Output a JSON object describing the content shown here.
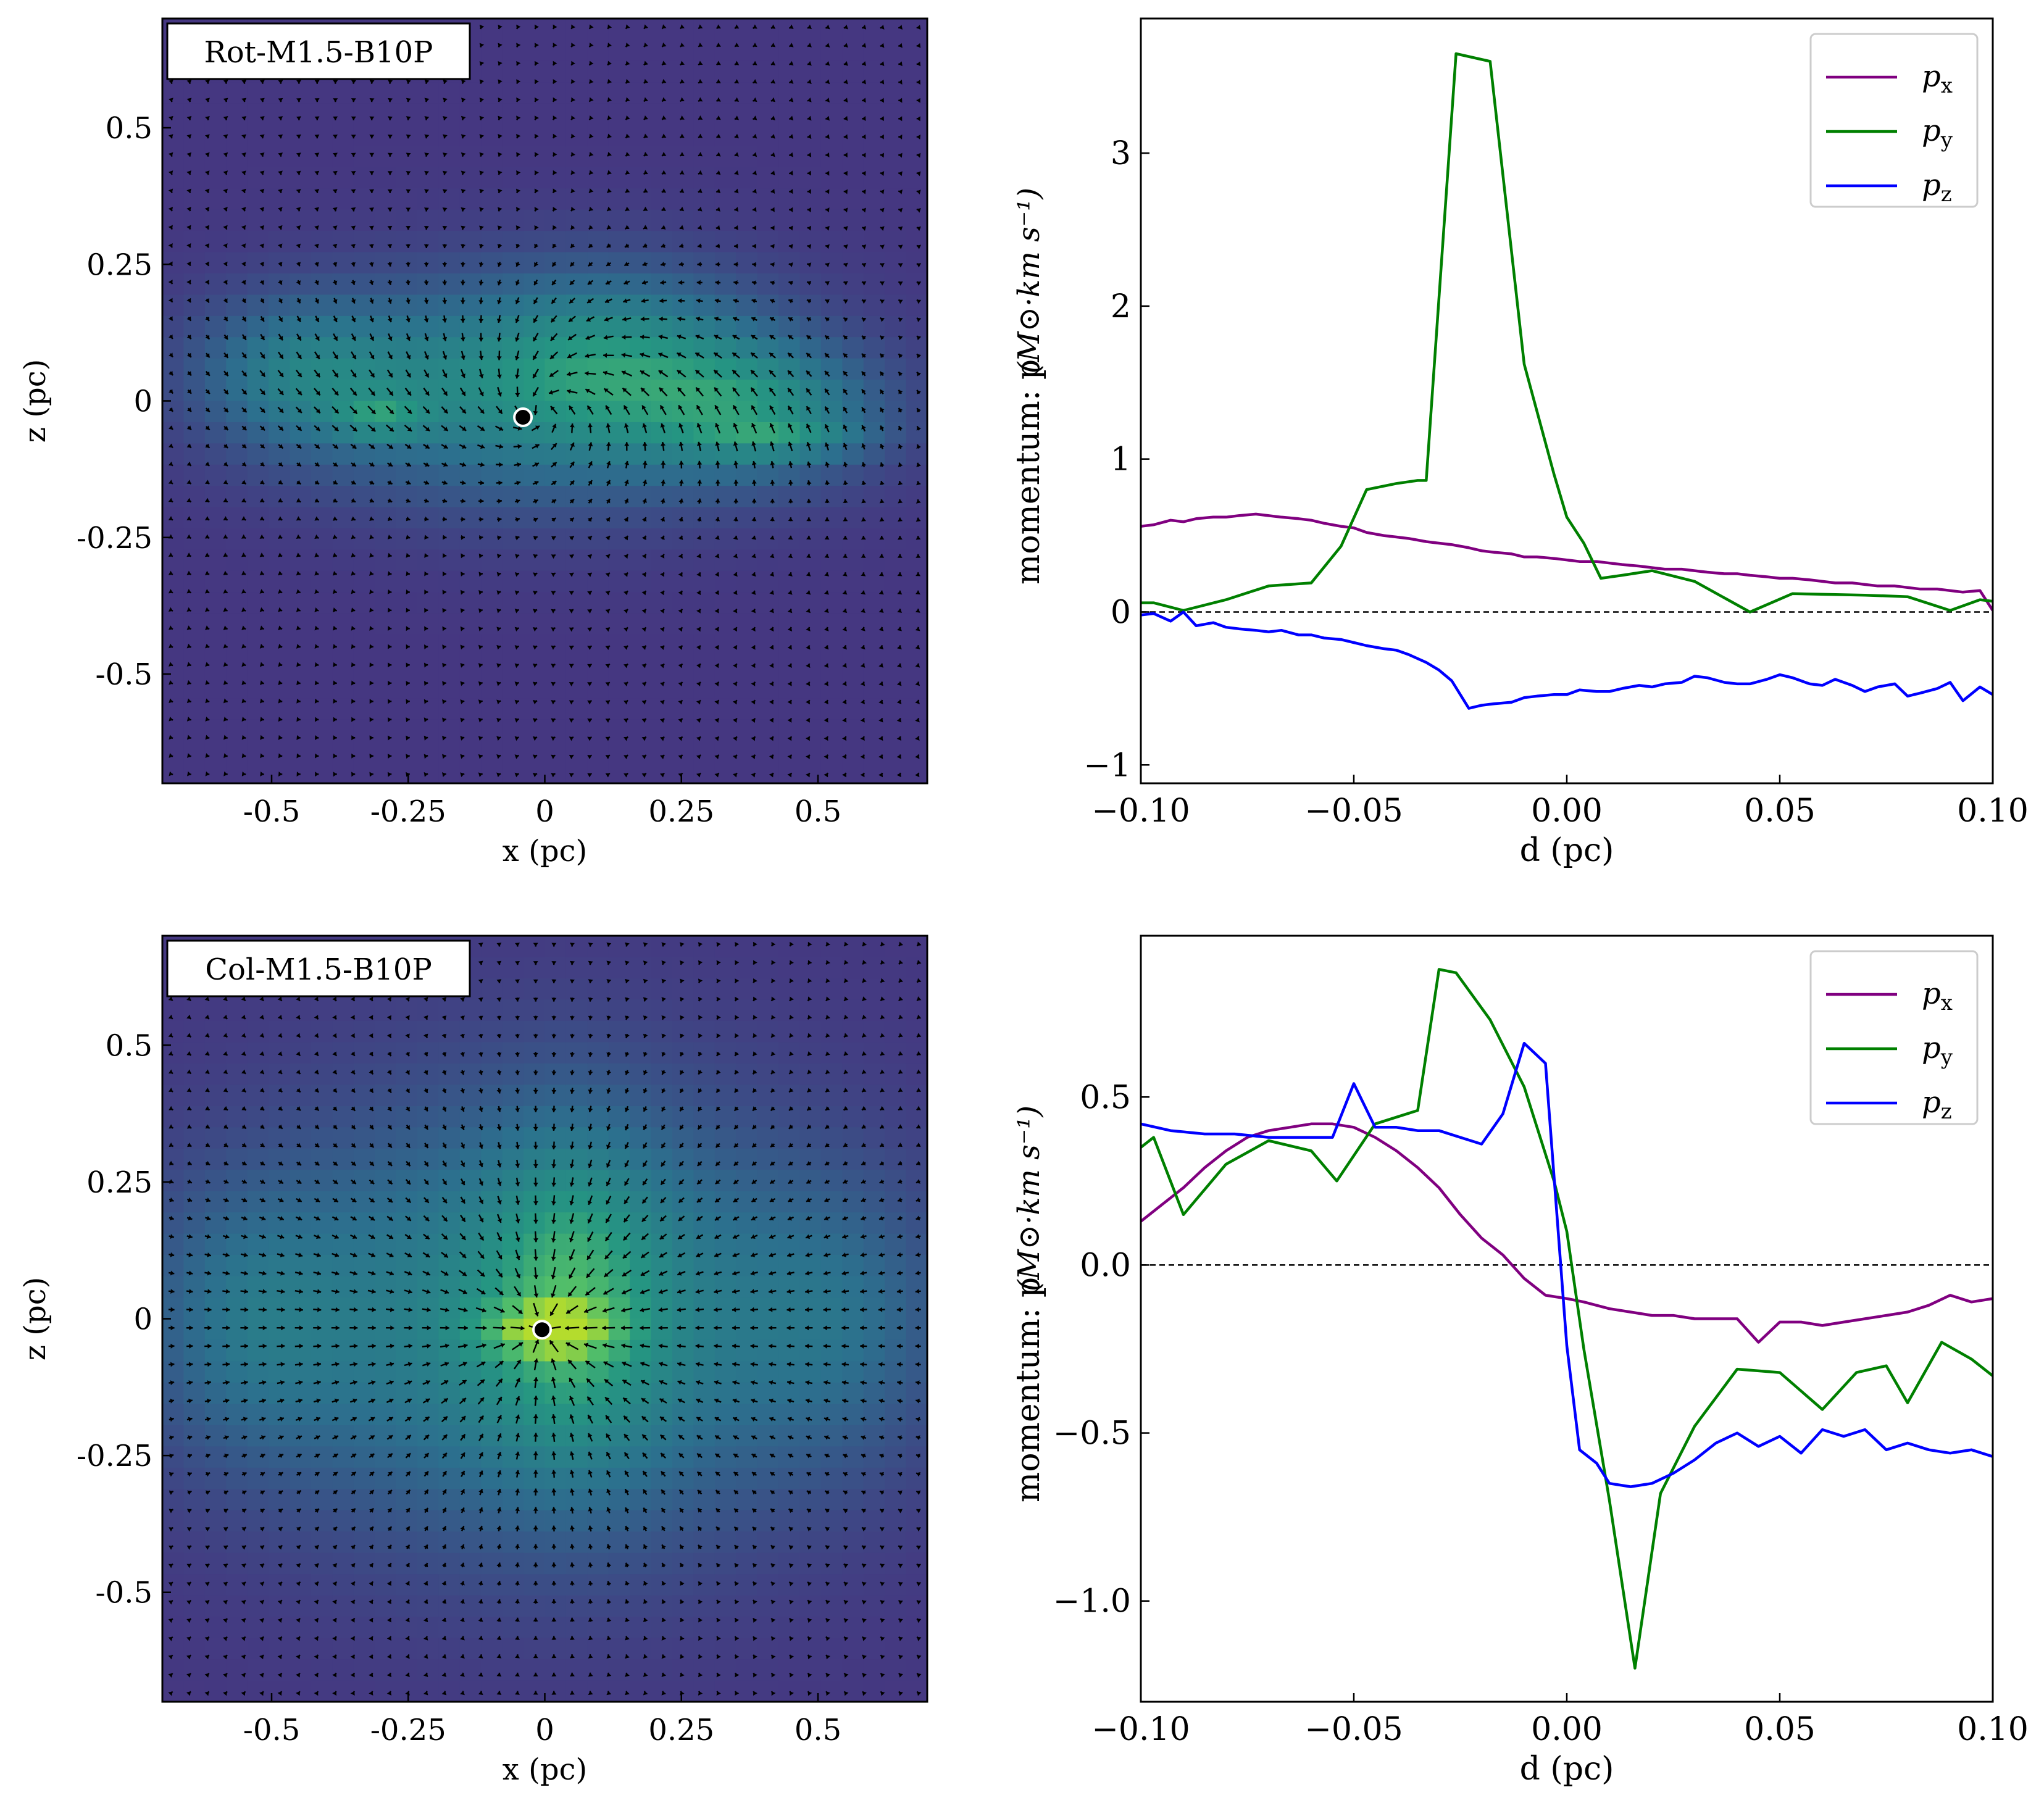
{
  "colors": {
    "px": "#800080",
    "py": "#008000",
    "pz": "#0000ff",
    "field_low": "#453a84",
    "field_mid": "#2a7f8e",
    "field_high": "#4dbf6f",
    "field_peak": "#b5dd2b",
    "vector": "#000000",
    "sink": "#000000"
  },
  "chart_data": [
    {
      "type": "heatmap",
      "title": "Rot-M1.5-B10P",
      "xlabel": "x (pc)",
      "ylabel": "z (pc)",
      "xlim": [
        -0.7,
        0.7
      ],
      "ylim": [
        -0.7,
        0.7
      ],
      "xticks": [
        -0.5,
        -0.25,
        0,
        0.25,
        0.5
      ],
      "xtick_labels": [
        "-0.5",
        "-0.25",
        "0",
        "0.25",
        "0.5"
      ],
      "yticks": [
        0.5,
        0.25,
        0,
        -0.25,
        -0.5
      ],
      "ytick_labels": [
        "0.5",
        "0.25",
        "0",
        "-0.25",
        "-0.5"
      ],
      "sink": [
        -0.04,
        -0.03
      ],
      "colormap": "viridis",
      "overlay": "velocity vectors"
    },
    {
      "type": "line",
      "xlabel": "d (pc)",
      "ylabel": "momentum: p",
      "ylabel_unit": "(M⊙·km s⁻¹)",
      "xlim": [
        -0.1,
        0.1
      ],
      "ylim": [
        -1.12,
        3.88
      ],
      "xticks": [
        -0.1,
        -0.05,
        0,
        0.05,
        0.1
      ],
      "xtick_labels": [
        "−0.10",
        "−0.05",
        "0.00",
        "0.05",
        "0.10"
      ],
      "yticks": [
        3,
        2,
        1,
        0,
        -1
      ],
      "ytick_labels": [
        "3",
        "2",
        "1",
        "0",
        "−1"
      ],
      "zero_line": true,
      "legend": "top-right",
      "series": [
        {
          "name": "p",
          "sub": "x",
          "key": "px",
          "x": [
            -0.1,
            -0.097,
            -0.093,
            -0.09,
            -0.087,
            -0.083,
            -0.08,
            -0.077,
            -0.073,
            -0.07,
            -0.067,
            -0.063,
            -0.06,
            -0.057,
            -0.053,
            -0.05,
            -0.047,
            -0.043,
            -0.04,
            -0.037,
            -0.033,
            -0.03,
            -0.027,
            -0.023,
            -0.02,
            -0.017,
            -0.013,
            -0.01,
            -0.007,
            -0.003,
            0.0,
            0.003,
            0.007,
            0.01,
            0.013,
            0.017,
            0.02,
            0.023,
            0.027,
            0.03,
            0.033,
            0.037,
            0.04,
            0.043,
            0.047,
            0.05,
            0.053,
            0.057,
            0.06,
            0.063,
            0.067,
            0.07,
            0.073,
            0.077,
            0.08,
            0.083,
            0.087,
            0.09,
            0.093,
            0.097,
            0.1
          ],
          "y": [
            0.56,
            0.57,
            0.6,
            0.59,
            0.61,
            0.62,
            0.62,
            0.63,
            0.64,
            0.63,
            0.62,
            0.61,
            0.6,
            0.58,
            0.56,
            0.55,
            0.52,
            0.5,
            0.49,
            0.48,
            0.46,
            0.45,
            0.44,
            0.42,
            0.4,
            0.39,
            0.38,
            0.36,
            0.36,
            0.35,
            0.34,
            0.33,
            0.33,
            0.32,
            0.31,
            0.3,
            0.29,
            0.28,
            0.28,
            0.27,
            0.26,
            0.25,
            0.25,
            0.24,
            0.23,
            0.22,
            0.22,
            0.21,
            0.2,
            0.19,
            0.19,
            0.18,
            0.17,
            0.17,
            0.16,
            0.15,
            0.15,
            0.14,
            0.13,
            0.14,
            0.01
          ]
        },
        {
          "name": "p",
          "sub": "y",
          "key": "py",
          "x": [
            -0.1,
            -0.097,
            -0.09,
            -0.08,
            -0.07,
            -0.06,
            -0.053,
            -0.047,
            -0.04,
            -0.035,
            -0.033,
            -0.026,
            -0.018,
            -0.01,
            -0.003,
            0.0,
            0.004,
            0.008,
            0.013,
            0.02,
            0.03,
            0.043,
            0.053,
            0.07,
            0.08,
            0.09,
            0.097,
            0.1
          ],
          "y": [
            0.06,
            0.06,
            0.01,
            0.08,
            0.17,
            0.19,
            0.43,
            0.8,
            0.84,
            0.86,
            0.86,
            3.65,
            3.6,
            1.62,
            0.9,
            0.62,
            0.45,
            0.22,
            0.24,
            0.27,
            0.2,
            0.0,
            0.12,
            0.11,
            0.1,
            0.01,
            0.08,
            0.07
          ]
        },
        {
          "name": "p",
          "sub": "z",
          "key": "pz",
          "x": [
            -0.1,
            -0.097,
            -0.093,
            -0.09,
            -0.087,
            -0.083,
            -0.08,
            -0.077,
            -0.073,
            -0.07,
            -0.067,
            -0.063,
            -0.06,
            -0.057,
            -0.053,
            -0.05,
            -0.047,
            -0.043,
            -0.04,
            -0.037,
            -0.033,
            -0.03,
            -0.027,
            -0.023,
            -0.02,
            -0.017,
            -0.013,
            -0.01,
            -0.007,
            -0.003,
            0.0,
            0.003,
            0.007,
            0.01,
            0.013,
            0.017,
            0.02,
            0.023,
            0.027,
            0.03,
            0.033,
            0.037,
            0.04,
            0.043,
            0.047,
            0.05,
            0.053,
            0.057,
            0.06,
            0.063,
            0.067,
            0.07,
            0.073,
            0.077,
            0.08,
            0.083,
            0.087,
            0.09,
            0.093,
            0.097,
            0.1
          ],
          "y": [
            -0.02,
            -0.01,
            -0.06,
            0.0,
            -0.09,
            -0.07,
            -0.1,
            -0.11,
            -0.12,
            -0.13,
            -0.12,
            -0.15,
            -0.15,
            -0.17,
            -0.18,
            -0.2,
            -0.22,
            -0.24,
            -0.25,
            -0.28,
            -0.33,
            -0.38,
            -0.45,
            -0.63,
            -0.61,
            -0.6,
            -0.59,
            -0.56,
            -0.55,
            -0.54,
            -0.54,
            -0.51,
            -0.52,
            -0.52,
            -0.5,
            -0.48,
            -0.49,
            -0.47,
            -0.46,
            -0.42,
            -0.43,
            -0.46,
            -0.47,
            -0.47,
            -0.44,
            -0.41,
            -0.43,
            -0.47,
            -0.48,
            -0.44,
            -0.48,
            -0.52,
            -0.49,
            -0.47,
            -0.55,
            -0.53,
            -0.5,
            -0.46,
            -0.58,
            -0.49,
            -0.54
          ]
        }
      ]
    },
    {
      "type": "heatmap",
      "title": "Col-M1.5-B10P",
      "xlabel": "x (pc)",
      "ylabel": "z (pc)",
      "xlim": [
        -0.7,
        0.7
      ],
      "ylim": [
        -0.7,
        0.7
      ],
      "xticks": [
        -0.5,
        -0.25,
        0,
        0.25,
        0.5
      ],
      "xtick_labels": [
        "-0.5",
        "-0.25",
        "0",
        "0.25",
        "0.5"
      ],
      "yticks": [
        0.5,
        0.25,
        0,
        -0.25,
        -0.5
      ],
      "ytick_labels": [
        "0.5",
        "0.25",
        "0",
        "-0.25",
        "-0.5"
      ],
      "sink": [
        -0.005,
        -0.02
      ],
      "colormap": "viridis",
      "overlay": "velocity vectors"
    },
    {
      "type": "line",
      "xlabel": "d (pc)",
      "ylabel": "momentum: p",
      "ylabel_unit": "(M⊙·km s⁻¹)",
      "xlim": [
        -0.1,
        0.1
      ],
      "ylim": [
        -1.3,
        0.98
      ],
      "xticks": [
        -0.1,
        -0.05,
        0,
        0.05,
        0.1
      ],
      "xtick_labels": [
        "−0.10",
        "−0.05",
        "0.00",
        "0.05",
        "0.10"
      ],
      "yticks": [
        0.5,
        0.0,
        -0.5,
        -1.0
      ],
      "ytick_labels": [
        "0.5",
        "0.0",
        "−0.5",
        "−1.0"
      ],
      "zero_line": true,
      "legend": "top-right",
      "series": [
        {
          "name": "p",
          "sub": "x",
          "key": "px",
          "x": [
            -0.1,
            -0.095,
            -0.09,
            -0.085,
            -0.08,
            -0.075,
            -0.07,
            -0.065,
            -0.06,
            -0.055,
            -0.05,
            -0.045,
            -0.04,
            -0.035,
            -0.03,
            -0.025,
            -0.02,
            -0.015,
            -0.01,
            -0.005,
            0.0,
            0.004,
            0.01,
            0.015,
            0.02,
            0.025,
            0.03,
            0.035,
            0.04,
            0.045,
            0.05,
            0.055,
            0.06,
            0.065,
            0.07,
            0.075,
            0.08,
            0.085,
            0.09,
            0.095,
            0.1
          ],
          "y": [
            0.13,
            0.18,
            0.23,
            0.29,
            0.34,
            0.38,
            0.4,
            0.41,
            0.42,
            0.42,
            0.41,
            0.38,
            0.34,
            0.29,
            0.23,
            0.15,
            0.08,
            0.03,
            -0.04,
            -0.09,
            -0.1,
            -0.11,
            -0.13,
            -0.14,
            -0.15,
            -0.15,
            -0.16,
            -0.16,
            -0.16,
            -0.23,
            -0.17,
            -0.17,
            -0.18,
            -0.17,
            -0.16,
            -0.15,
            -0.14,
            -0.12,
            -0.09,
            -0.11,
            -0.1
          ]
        },
        {
          "name": "p",
          "sub": "y",
          "key": "py",
          "x": [
            -0.1,
            -0.097,
            -0.09,
            -0.08,
            -0.07,
            -0.06,
            -0.054,
            -0.045,
            -0.035,
            -0.03,
            -0.026,
            -0.018,
            -0.01,
            -0.003,
            0.0,
            0.004,
            0.01,
            0.016,
            0.022,
            0.03,
            0.04,
            0.05,
            0.06,
            0.068,
            0.075,
            0.08,
            0.088,
            0.095,
            0.1
          ],
          "y": [
            0.35,
            0.38,
            0.15,
            0.3,
            0.37,
            0.34,
            0.25,
            0.42,
            0.46,
            0.88,
            0.87,
            0.73,
            0.53,
            0.25,
            0.1,
            -0.25,
            -0.7,
            -1.2,
            -0.68,
            -0.48,
            -0.31,
            -0.32,
            -0.43,
            -0.32,
            -0.3,
            -0.41,
            -0.23,
            -0.28,
            -0.33
          ]
        },
        {
          "name": "p",
          "sub": "z",
          "key": "pz",
          "x": [
            -0.1,
            -0.093,
            -0.085,
            -0.078,
            -0.07,
            -0.062,
            -0.055,
            -0.05,
            -0.045,
            -0.04,
            -0.035,
            -0.03,
            -0.025,
            -0.02,
            -0.015,
            -0.01,
            -0.005,
            0.0,
            0.003,
            0.007,
            0.01,
            0.015,
            0.02,
            0.025,
            0.03,
            0.035,
            0.04,
            0.045,
            0.05,
            0.055,
            0.06,
            0.065,
            0.07,
            0.075,
            0.08,
            0.085,
            0.09,
            0.095,
            0.1
          ],
          "y": [
            0.42,
            0.4,
            0.39,
            0.39,
            0.38,
            0.38,
            0.38,
            0.54,
            0.41,
            0.41,
            0.4,
            0.4,
            0.38,
            0.36,
            0.45,
            0.66,
            0.6,
            -0.24,
            -0.55,
            -0.59,
            -0.65,
            -0.66,
            -0.65,
            -0.62,
            -0.58,
            -0.53,
            -0.5,
            -0.54,
            -0.51,
            -0.56,
            -0.49,
            -0.51,
            -0.49,
            -0.55,
            -0.53,
            -0.55,
            -0.56,
            -0.55,
            -0.57
          ]
        }
      ]
    }
  ]
}
